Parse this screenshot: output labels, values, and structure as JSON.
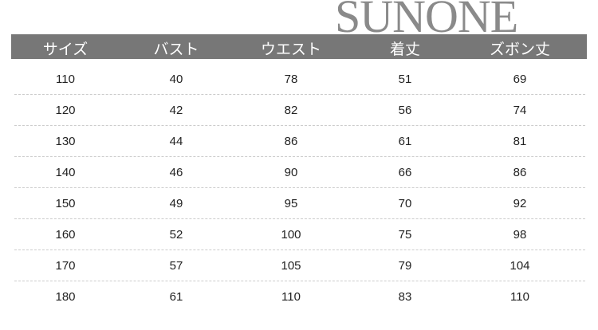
{
  "headers": [
    "サイズ",
    "バスト",
    "ウエスト",
    "着丈",
    "ズボン丈"
  ],
  "rows": [
    [
      "110",
      "40",
      "78",
      "51",
      "69"
    ],
    [
      "120",
      "42",
      "82",
      "56",
      "74"
    ],
    [
      "130",
      "44",
      "86",
      "61",
      "81"
    ],
    [
      "140",
      "46",
      "90",
      "66",
      "86"
    ],
    [
      "150",
      "49",
      "95",
      "70",
      "92"
    ],
    [
      "160",
      "52",
      "100",
      "75",
      "98"
    ],
    [
      "170",
      "57",
      "105",
      "79",
      "104"
    ],
    [
      "180",
      "61",
      "110",
      "83",
      "110"
    ]
  ],
  "watermark": "SUNONE",
  "colors": {
    "header_bg": "#777777",
    "header_text": "#ffffff",
    "divider": "#cccccc",
    "watermark": "#8a8a8a"
  }
}
